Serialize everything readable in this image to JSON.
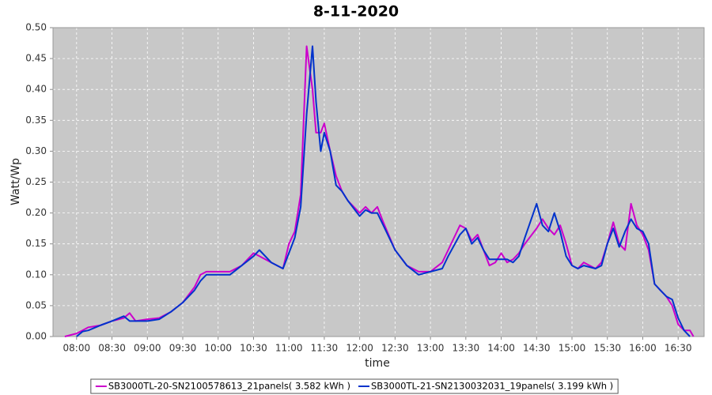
{
  "chart_data": {
    "type": "line",
    "title": "8-11-2020",
    "x_label": "time",
    "y_label": "Watt/Wp",
    "x": [
      "07:50",
      "08:00",
      "08:05",
      "08:10",
      "08:20",
      "08:30",
      "08:40",
      "08:45",
      "08:50",
      "09:00",
      "09:10",
      "09:20",
      "09:30",
      "09:40",
      "09:45",
      "09:50",
      "10:00",
      "10:10",
      "10:20",
      "10:30",
      "10:35",
      "10:45",
      "10:55",
      "11:00",
      "11:05",
      "11:10",
      "11:15",
      "11:20",
      "11:23",
      "11:27",
      "11:30",
      "11:35",
      "11:40",
      "11:45",
      "11:50",
      "12:00",
      "12:05",
      "12:10",
      "12:15",
      "12:20",
      "12:30",
      "12:40",
      "12:50",
      "13:00",
      "13:10",
      "13:15",
      "13:25",
      "13:30",
      "13:35",
      "13:40",
      "13:45",
      "13:50",
      "13:55",
      "14:00",
      "14:05",
      "14:10",
      "14:15",
      "14:20",
      "14:30",
      "14:35",
      "14:40",
      "14:45",
      "14:50",
      "14:55",
      "15:00",
      "15:05",
      "15:10",
      "15:20",
      "15:25",
      "15:30",
      "15:35",
      "15:40",
      "15:45",
      "15:50",
      "15:55",
      "16:00",
      "16:05",
      "16:10",
      "16:15",
      "16:20",
      "16:25",
      "16:30",
      "16:35",
      "16:40",
      "16:43"
    ],
    "series": [
      {
        "name": "SB3000TL-20-SN2100578613_21panels( 3.582 kWh )",
        "color": "#cc00cc",
        "values": [
          0,
          0.005,
          0.01,
          0.015,
          0.018,
          0.025,
          0.03,
          0.038,
          0.025,
          0.028,
          0.03,
          0.04,
          0.055,
          0.08,
          0.1,
          0.105,
          0.105,
          0.105,
          0.115,
          0.135,
          0.13,
          0.12,
          0.11,
          0.15,
          0.17,
          0.23,
          0.47,
          0.4,
          0.33,
          0.33,
          0.345,
          0.3,
          0.26,
          0.235,
          0.22,
          0.2,
          0.21,
          0.2,
          0.21,
          0.185,
          0.14,
          0.115,
          0.105,
          0.105,
          0.12,
          0.14,
          0.18,
          0.175,
          0.155,
          0.165,
          0.14,
          0.115,
          0.12,
          0.135,
          0.12,
          0.125,
          0.135,
          0.15,
          0.175,
          0.19,
          0.175,
          0.165,
          0.18,
          0.15,
          0.115,
          0.11,
          0.12,
          0.11,
          0.12,
          0.15,
          0.185,
          0.15,
          0.14,
          0.215,
          0.18,
          0.165,
          0.14,
          0.085,
          0.075,
          0.065,
          0.05,
          0.02,
          0.01,
          0.01,
          0
        ]
      },
      {
        "name": "SB3000TL-21-SN2130032031_19panels( 3.199 kWh )",
        "color": "#0033cc",
        "values": [
          null,
          0,
          0.008,
          0.01,
          0.018,
          0.025,
          0.033,
          0.025,
          0.025,
          0.025,
          0.028,
          0.04,
          0.055,
          0.075,
          0.09,
          0.1,
          0.1,
          0.1,
          0.115,
          0.13,
          0.14,
          0.12,
          0.11,
          0.135,
          0.16,
          0.21,
          0.36,
          0.47,
          0.38,
          0.3,
          0.33,
          0.3,
          0.245,
          0.235,
          0.22,
          0.195,
          0.205,
          0.2,
          0.2,
          0.18,
          0.14,
          0.115,
          0.1,
          0.105,
          0.11,
          0.13,
          0.165,
          0.175,
          0.15,
          0.16,
          0.14,
          0.125,
          0.125,
          0.125,
          0.125,
          0.12,
          0.13,
          0.16,
          0.215,
          0.18,
          0.17,
          0.2,
          0.17,
          0.13,
          0.115,
          0.11,
          0.115,
          0.11,
          0.115,
          0.15,
          0.175,
          0.145,
          0.17,
          0.19,
          0.175,
          0.17,
          0.15,
          0.085,
          0.075,
          0.065,
          0.06,
          0.03,
          0.01,
          0,
          null
        ]
      }
    ],
    "xlim": [
      "07:40",
      "16:52"
    ],
    "xticks": [
      "08:00",
      "08:30",
      "09:00",
      "09:30",
      "10:00",
      "10:30",
      "11:00",
      "11:30",
      "12:00",
      "12:30",
      "13:00",
      "13:30",
      "14:00",
      "14:30",
      "15:00",
      "15:30",
      "16:00",
      "16:30"
    ],
    "ylim": [
      0,
      0.5
    ],
    "yticks": [
      {
        "value": 0,
        "label": "0.00"
      },
      {
        "value": 0.05,
        "label": "0.05"
      },
      {
        "value": 0.1,
        "label": "0.10"
      },
      {
        "value": 0.15,
        "label": "0.15"
      },
      {
        "value": 0.2,
        "label": "0.20"
      },
      {
        "value": 0.25,
        "label": "0.25"
      },
      {
        "value": 0.3,
        "label": "0.30"
      },
      {
        "value": 0.35,
        "label": "0.35"
      },
      {
        "value": 0.4,
        "label": "0.40"
      },
      {
        "value": 0.45,
        "label": "0.45"
      },
      {
        "value": 0.5,
        "label": "0.50"
      }
    ],
    "grid": true
  }
}
